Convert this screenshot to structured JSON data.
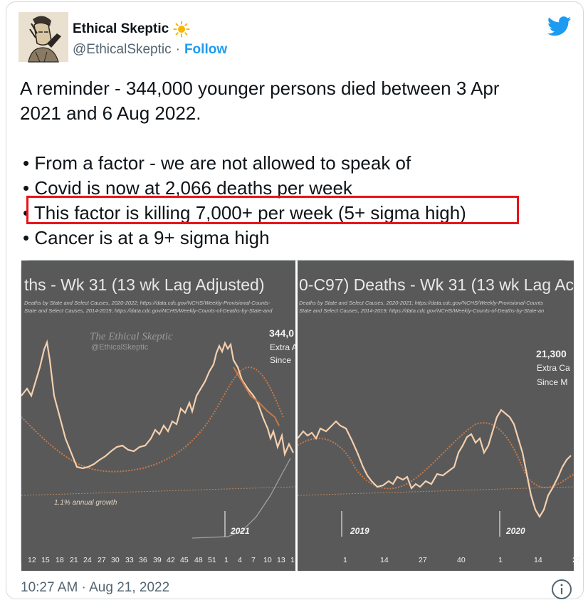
{
  "tweet": {
    "author_name": "Ethical Skeptic",
    "author_emoji": "☀️",
    "handle": "@EthicalSkeptic",
    "separator": "·",
    "follow_label": "Follow",
    "text_line1": "A reminder - 344,000 younger persons died between 3 Apr",
    "text_line2": "2021 and 6 Aug 2022.",
    "bullets": [
      "• From a factor - we are not allowed to speak of",
      "• Covid is now at 2,066 deaths per week",
      "• This factor is killing 7,000+ per week (5+ sigma high)",
      "• Cancer is at a 9+ sigma high"
    ],
    "timestamp": "10:27 AM · Aug 21, 2022",
    "icons": {
      "verified": "none",
      "brand": "twitter-bird-icon",
      "info": "info-icon",
      "sun": "sun-emoji-icon"
    },
    "colors": {
      "accent": "#1d9bf0",
      "highlight": "#e8141a",
      "chart_bg": "#595959",
      "line": "#f4cfae"
    }
  },
  "chart_left": {
    "title": "ths - Wk 31 (13 wk Lag Adjusted)",
    "source1": "Deaths by State and Select Causes, 2020-2022; https://data.cdc.gov/NCHS/Weekly-Provisional-Counts-",
    "source2": "State and Select Causes, 2014-2019; https://data.cdc.gov/NCHS/Weekly-Counts-of-Deaths-by-State-and",
    "watermark": "The Ethical Skeptic",
    "watermark_handle": "@EthicalSkeptic",
    "callout_value": "344,0",
    "callout_line1": "Extra A",
    "callout_line2": "Since",
    "growth_label": "1.1% annual growth",
    "year_label": "2021",
    "x_ticks": [
      "12",
      "15",
      "18",
      "21",
      "24",
      "27",
      "30",
      "33",
      "36",
      "39",
      "42",
      "45",
      "48",
      "51",
      "1",
      "4",
      "7",
      "10",
      "13",
      "1"
    ]
  },
  "chart_right": {
    "title": "0-C97) Deaths - Wk 31 (13 wk Lag Ac",
    "source1": "Deaths by State and Select Causes, 2020-2021; https://data.cdc.gov/NCHS/Weekly-Provisional-Counts",
    "source2": "State and Select Causes, 2014-2019; https://data.cdc.gov/NCHS/Weekly-Counts-of-Deaths-by-State-an",
    "callout_value": "21,300",
    "callout_line1": "Extra Ca",
    "callout_line2": "Since M",
    "year_label_a": "2019",
    "year_label_b": "2020",
    "x_ticks": [
      "1",
      "14",
      "27",
      "40",
      "1",
      "14",
      "27"
    ]
  }
}
